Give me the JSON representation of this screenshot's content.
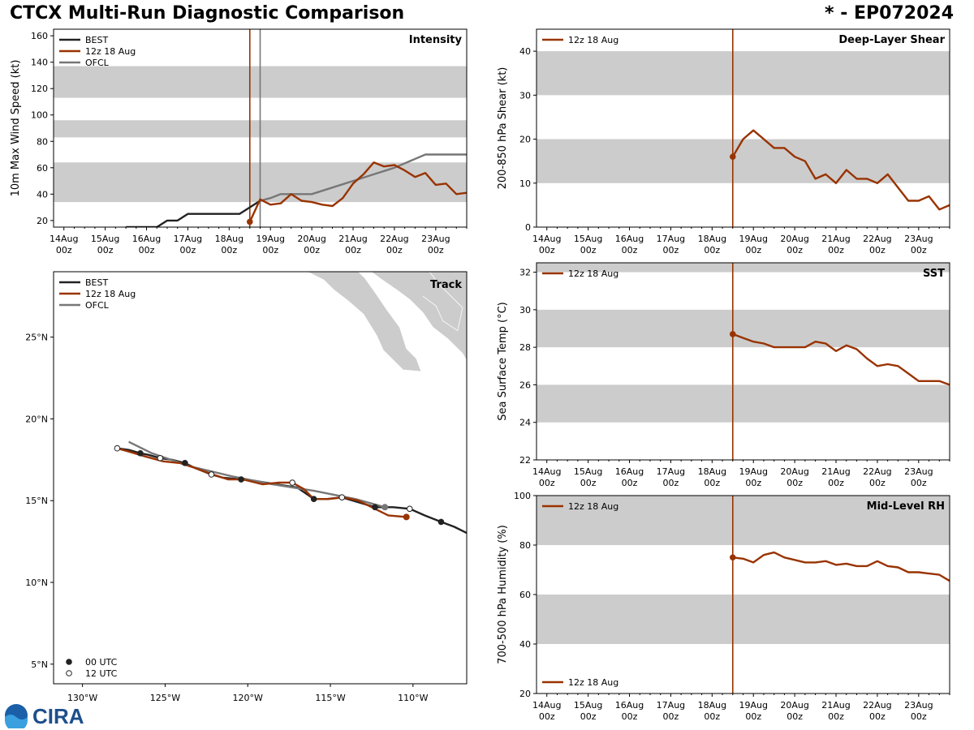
{
  "header": {
    "title": "CTCX Multi-Run Diagnostic Comparison",
    "storm_id": "* - EP072024"
  },
  "logo": {
    "text": "CIRA"
  },
  "colors": {
    "best": "#222222",
    "run": "#993300",
    "ofcl": "#777777",
    "band": "#cccccc"
  },
  "chart_data": [
    {
      "id": "intensity",
      "type": "line",
      "title": "Intensity",
      "ylabel": "10m Max Wind Speed (kt)",
      "xlabel": "",
      "x_unit": "days since 14 Aug 00z",
      "xlim": [
        -0.25,
        9.75
      ],
      "ylim": [
        15,
        165
      ],
      "xticks": [
        0,
        1,
        2,
        3,
        4,
        5,
        6,
        7,
        8,
        9
      ],
      "xtick_labels": [
        [
          "14Aug",
          "00z"
        ],
        [
          "15Aug",
          "00z"
        ],
        [
          "16Aug",
          "00z"
        ],
        [
          "17Aug",
          "00z"
        ],
        [
          "18Aug",
          "00z"
        ],
        [
          "19Aug",
          "00z"
        ],
        [
          "20Aug",
          "00z"
        ],
        [
          "21Aug",
          "00z"
        ],
        [
          "22Aug",
          "00z"
        ],
        [
          "23Aug",
          "00z"
        ]
      ],
      "yticks": [
        20,
        40,
        60,
        80,
        100,
        120,
        140,
        160
      ],
      "ytick_labels": [
        "20",
        "40",
        "60",
        "80",
        "100",
        "120",
        "140",
        "160"
      ],
      "bands": [
        [
          34,
          64
        ],
        [
          83,
          96
        ],
        [
          113,
          137
        ]
      ],
      "vlines": [
        {
          "x": 4.5,
          "series": "run"
        },
        {
          "x": 4.75,
          "series": "ofcl"
        }
      ],
      "legend": [
        "BEST",
        "12z 18 Aug",
        "OFCL"
      ],
      "series": [
        {
          "name": "BEST",
          "key": "best",
          "x": [
            1.5,
            1.75,
            2,
            2.25,
            2.5,
            2.75,
            3,
            3.25,
            3.5,
            3.75,
            4,
            4.25,
            4.5,
            4.75
          ],
          "y": [
            15,
            15,
            15,
            15,
            20,
            20,
            25,
            25,
            25,
            25,
            25,
            25,
            30,
            35
          ]
        },
        {
          "name": "OFCL",
          "key": "ofcl",
          "x": [
            4.75,
            5,
            5.25,
            5.5,
            6,
            6.5,
            7,
            7.5,
            8,
            8.75,
            9.75
          ],
          "y": [
            35,
            37,
            40,
            40,
            40,
            45,
            50,
            55,
            60,
            70,
            70
          ]
        },
        {
          "name": "12z 18 Aug",
          "key": "run",
          "start_marker": true,
          "x": [
            4.5,
            4.75,
            5,
            5.25,
            5.5,
            5.75,
            6,
            6.25,
            6.5,
            6.75,
            7,
            7.25,
            7.5,
            7.75,
            8,
            8.25,
            8.5,
            8.75,
            9,
            9.25,
            9.5,
            9.75
          ],
          "y": [
            19,
            36,
            32,
            33,
            40,
            35,
            34,
            32,
            31,
            37,
            48,
            55,
            64,
            61,
            62,
            58,
            53,
            56,
            47,
            48,
            40,
            41
          ]
        }
      ]
    },
    {
      "id": "shear",
      "type": "line",
      "title": "Deep-Layer Shear",
      "ylabel": "200-850 hPa Shear (kt)",
      "xlabel": "",
      "x_unit": "days since 14 Aug 00z",
      "xlim": [
        -0.25,
        9.75
      ],
      "ylim": [
        0,
        45
      ],
      "xticks": [
        0,
        1,
        2,
        3,
        4,
        5,
        6,
        7,
        8,
        9
      ],
      "xtick_labels": [
        [
          "14Aug",
          "00z"
        ],
        [
          "15Aug",
          "00z"
        ],
        [
          "16Aug",
          "00z"
        ],
        [
          "17Aug",
          "00z"
        ],
        [
          "18Aug",
          "00z"
        ],
        [
          "19Aug",
          "00z"
        ],
        [
          "20Aug",
          "00z"
        ],
        [
          "21Aug",
          "00z"
        ],
        [
          "22Aug",
          "00z"
        ],
        [
          "23Aug",
          "00z"
        ]
      ],
      "yticks": [
        0,
        10,
        20,
        30,
        40
      ],
      "ytick_labels": [
        "0",
        "10",
        "20",
        "30",
        "40"
      ],
      "bands": [
        [
          10,
          20
        ],
        [
          30,
          40
        ]
      ],
      "vlines": [
        {
          "x": 4.5,
          "series": "run"
        }
      ],
      "legend": [
        "12z 18 Aug"
      ],
      "series": [
        {
          "name": "12z 18 Aug",
          "key": "run",
          "start_marker": true,
          "x": [
            4.5,
            4.75,
            5,
            5.25,
            5.5,
            5.75,
            6,
            6.25,
            6.5,
            6.75,
            7,
            7.25,
            7.5,
            7.75,
            8,
            8.25,
            8.5,
            8.75,
            9,
            9.25,
            9.5,
            9.75
          ],
          "y": [
            16,
            20,
            22,
            20,
            18,
            18,
            16,
            15,
            11,
            12,
            10,
            13,
            11,
            11,
            10,
            12,
            9,
            6,
            6,
            7,
            4,
            5
          ]
        }
      ]
    },
    {
      "id": "sst",
      "type": "line",
      "title": "SST",
      "ylabel": "Sea Surface Temp (°C)",
      "xlabel": "",
      "x_unit": "days since 14 Aug 00z",
      "xlim": [
        -0.25,
        9.75
      ],
      "ylim": [
        22,
        32.5
      ],
      "xticks": [
        0,
        1,
        2,
        3,
        4,
        5,
        6,
        7,
        8,
        9
      ],
      "xtick_labels": [
        [
          "14Aug",
          "00z"
        ],
        [
          "15Aug",
          "00z"
        ],
        [
          "16Aug",
          "00z"
        ],
        [
          "17Aug",
          "00z"
        ],
        [
          "18Aug",
          "00z"
        ],
        [
          "19Aug",
          "00z"
        ],
        [
          "20Aug",
          "00z"
        ],
        [
          "21Aug",
          "00z"
        ],
        [
          "22Aug",
          "00z"
        ],
        [
          "23Aug",
          "00z"
        ]
      ],
      "yticks": [
        22,
        24,
        26,
        28,
        30,
        32
      ],
      "ytick_labels": [
        "22",
        "24",
        "26",
        "28",
        "30",
        "32"
      ],
      "bands": [
        [
          24,
          26
        ],
        [
          28,
          30
        ],
        [
          32,
          34
        ]
      ],
      "vlines": [
        {
          "x": 4.5,
          "series": "run"
        }
      ],
      "legend": [
        "12z 18 Aug"
      ],
      "series": [
        {
          "name": "12z 18 Aug",
          "key": "run",
          "start_marker": true,
          "x": [
            4.5,
            4.75,
            5,
            5.25,
            5.5,
            5.75,
            6,
            6.25,
            6.5,
            6.75,
            7,
            7.25,
            7.5,
            7.75,
            8,
            8.25,
            8.5,
            8.75,
            9,
            9.25,
            9.5,
            9.75
          ],
          "y": [
            28.7,
            28.5,
            28.3,
            28.2,
            28.0,
            28.0,
            28.0,
            28.0,
            28.3,
            28.2,
            27.8,
            28.1,
            27.9,
            27.4,
            27.0,
            27.1,
            27.0,
            26.6,
            26.2,
            26.2,
            26.2,
            26.0
          ]
        }
      ]
    },
    {
      "id": "rh",
      "type": "line",
      "title": "Mid-Level RH",
      "ylabel": "700-500 hPa Humidity (%)",
      "xlabel": "",
      "x_unit": "days since 14 Aug 00z",
      "xlim": [
        -0.25,
        9.75
      ],
      "ylim": [
        20,
        100
      ],
      "xticks": [
        0,
        1,
        2,
        3,
        4,
        5,
        6,
        7,
        8,
        9
      ],
      "xtick_labels": [
        [
          "14Aug",
          "00z"
        ],
        [
          "15Aug",
          "00z"
        ],
        [
          "16Aug",
          "00z"
        ],
        [
          "17Aug",
          "00z"
        ],
        [
          "18Aug",
          "00z"
        ],
        [
          "19Aug",
          "00z"
        ],
        [
          "20Aug",
          "00z"
        ],
        [
          "21Aug",
          "00z"
        ],
        [
          "22Aug",
          "00z"
        ],
        [
          "23Aug",
          "00z"
        ]
      ],
      "yticks": [
        20,
        40,
        60,
        80,
        100
      ],
      "ytick_labels": [
        "20",
        "40",
        "60",
        "80",
        "100"
      ],
      "bands": [
        [
          40,
          60
        ],
        [
          80,
          100
        ]
      ],
      "vlines": [
        {
          "x": 4.5,
          "series": "run"
        }
      ],
      "legend": [
        "12z 18 Aug"
      ],
      "series": [
        {
          "name": "12z 18 Aug",
          "key": "run",
          "start_marker": true,
          "x": [
            4.5,
            4.75,
            5,
            5.25,
            5.5,
            5.75,
            6,
            6.25,
            6.5,
            6.75,
            7,
            7.25,
            7.5,
            7.75,
            8,
            8.25,
            8.5,
            8.75,
            9,
            9.25,
            9.5,
            9.75
          ],
          "y": [
            75,
            74.5,
            73,
            76,
            77,
            75,
            74,
            73,
            73,
            73.5,
            72,
            72.5,
            71.5,
            71.5,
            73.5,
            71.5,
            71,
            69,
            69,
            68.5,
            68,
            65.5
          ]
        }
      ]
    },
    {
      "id": "track",
      "type": "map",
      "title": "Track",
      "xlim": [
        -131.75,
        -106.75
      ],
      "ylim": [
        3.8,
        29
      ],
      "xticks": [
        -130,
        -125,
        -120,
        -115,
        -110
      ],
      "xtick_labels": [
        "130°W",
        "125°W",
        "120°W",
        "115°W",
        "110°W"
      ],
      "yticks": [
        5,
        10,
        15,
        20,
        25
      ],
      "ytick_labels": [
        "5°N",
        "10°N",
        "15°N",
        "20°N",
        "25°N"
      ],
      "legend": [
        "BEST",
        "12z 18 Aug",
        "OFCL"
      ],
      "marker_legend": [
        "00 UTC",
        "12 UTC"
      ],
      "series": [
        {
          "name": "BEST",
          "key": "best",
          "lon": [
            -106.5,
            -107.5,
            -108.3,
            -109.3,
            -110.2,
            -111.2,
            -112.3,
            -113.3,
            -114.3,
            -115.2,
            -116.0,
            -117.0,
            -118.3,
            -119.5,
            -120.4,
            -121.5,
            -122.2,
            -123.2,
            -123.8,
            -124.6,
            -125.3,
            -126.0,
            -126.5,
            -127.2,
            -127.9
          ],
          "lat": [
            12.9,
            13.4,
            13.7,
            14.1,
            14.5,
            14.6,
            14.6,
            14.9,
            15.2,
            15.1,
            15.1,
            15.8,
            16.0,
            16.2,
            16.3,
            16.4,
            16.6,
            17.0,
            17.3,
            17.5,
            17.6,
            17.8,
            17.9,
            18.1,
            18.2
          ],
          "markers": [
            {
              "lon": -108.3,
              "lat": 13.7,
              "utc": "00"
            },
            {
              "lon": -110.2,
              "lat": 14.5,
              "utc": "12"
            },
            {
              "lon": -112.3,
              "lat": 14.6,
              "utc": "00"
            },
            {
              "lon": -114.3,
              "lat": 15.2,
              "utc": "12"
            },
            {
              "lon": -116.0,
              "lat": 15.1,
              "utc": "00"
            },
            {
              "lon": -117.3,
              "lat": 16.1,
              "utc": "12"
            },
            {
              "lon": -120.4,
              "lat": 16.3,
              "utc": "00"
            },
            {
              "lon": -122.2,
              "lat": 16.6,
              "utc": "12"
            },
            {
              "lon": -123.8,
              "lat": 17.3,
              "utc": "00"
            },
            {
              "lon": -125.3,
              "lat": 17.6,
              "utc": "12"
            },
            {
              "lon": -126.5,
              "lat": 17.9,
              "utc": "00"
            },
            {
              "lon": -127.9,
              "lat": 18.2,
              "utc": "12"
            }
          ]
        },
        {
          "name": "12z 18 Aug",
          "key": "run",
          "lon": [
            -110.4,
            -111.5,
            -112.3,
            -113.3,
            -114.2,
            -115.1,
            -116.0,
            -116.6,
            -117.3,
            -118.1,
            -119.1,
            -120.3,
            -121.2,
            -122.1,
            -123.2,
            -124.1,
            -125.1,
            -126.2,
            -127.2,
            -127.9
          ],
          "lat": [
            14.0,
            14.1,
            14.5,
            15.0,
            15.2,
            15.1,
            15.1,
            15.7,
            16.1,
            16.1,
            16.0,
            16.3,
            16.3,
            16.6,
            17.0,
            17.3,
            17.4,
            17.7,
            18.0,
            18.2
          ],
          "start_marker": {
            "lon": -110.4,
            "lat": 14.0
          }
        },
        {
          "name": "OFCL",
          "key": "ofcl",
          "lon": [
            -111.7,
            -113.5,
            -116.0,
            -118.5,
            -121.0,
            -123.5,
            -125.8,
            -127.2
          ],
          "lat": [
            14.6,
            15.1,
            15.6,
            16.0,
            16.5,
            17.1,
            17.9,
            18.6
          ],
          "start_marker": {
            "lon": -111.7,
            "lat": 14.6
          }
        }
      ]
    }
  ]
}
